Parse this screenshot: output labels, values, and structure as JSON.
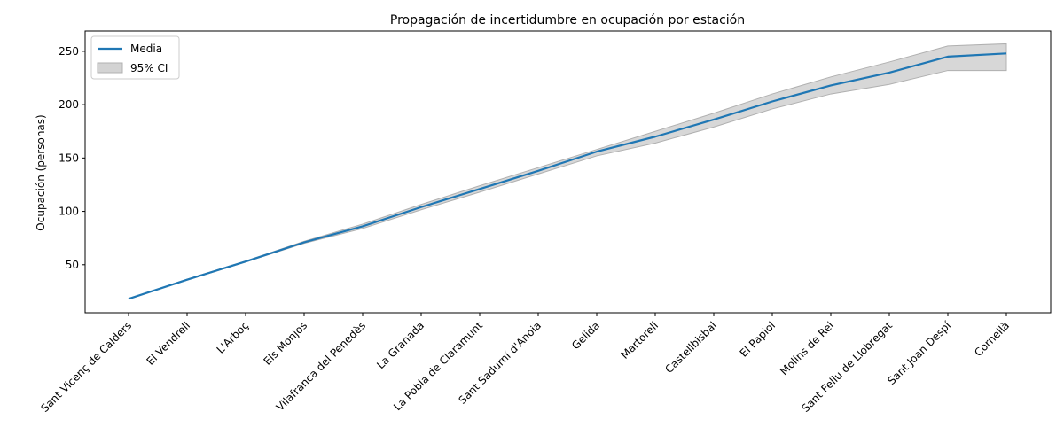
{
  "chart_data": {
    "type": "line",
    "title": "Propagación de incertidumbre en ocupación por estación",
    "xlabel": "",
    "ylabel": "Ocupación (personas)",
    "categories": [
      "Sant Vicenç de Calders",
      "El Vendrell",
      "L'Arboç",
      "Els Monjos",
      "Vilafranca del Penedès",
      "La Granada",
      "La Pobla de Claramunt",
      "Sant Sadurní d'Anoia",
      "Gelida",
      "Martorell",
      "Castellbisbal",
      "El Papiol",
      "Molins de Rei",
      "Sant Feliu de Llobregat",
      "Sant Joan Despí",
      "Cornellà"
    ],
    "series": [
      {
        "name": "Media",
        "color": "#1f77b4",
        "values": [
          18,
          36,
          53,
          71,
          86,
          104,
          121,
          138,
          156,
          170,
          186,
          203,
          218,
          230,
          245,
          248
        ]
      },
      {
        "name": "95% CI",
        "type": "band",
        "color": "#d3d3d3",
        "lower": [
          18,
          35.5,
          52.5,
          70,
          84,
          101.5,
          118,
          135,
          152,
          164,
          179,
          196,
          210,
          219,
          232,
          232
        ],
        "upper": [
          18,
          36.5,
          53.5,
          72,
          88,
          106.5,
          124,
          141,
          158,
          175,
          192,
          210,
          226,
          240,
          255,
          257
        ]
      }
    ],
    "yticks": [
      50,
      100,
      150,
      200,
      250
    ],
    "ylim": [
      5,
      269
    ],
    "grid": false,
    "legend": "top-left"
  }
}
